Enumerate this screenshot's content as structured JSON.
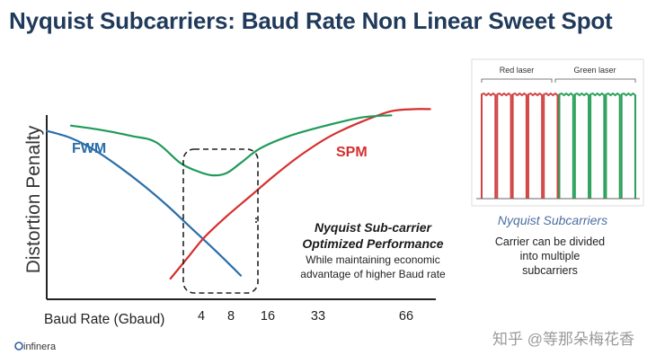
{
  "slide": {
    "title": "Nyquist Subcarriers: Baud Rate Non Linear Sweet Spot",
    "logo_text": "infinera",
    "watermark": "知乎 @等那朵梅花香"
  },
  "chart_data": [
    {
      "type": "line",
      "xlabel": "Baud Rate (Gbaud)",
      "ylabel": "Distortion Penalty",
      "x_ticks": [
        "4",
        "8",
        "16",
        "33",
        "66"
      ],
      "series": [
        {
          "name": "FWM",
          "color": "#2a6fa8",
          "points": [
            [
              0.0,
              0.815
            ],
            [
              0.1,
              0.78
            ],
            [
              0.2,
              0.72
            ],
            [
              0.3,
              0.64
            ],
            [
              0.4,
              0.55
            ],
            [
              0.5,
              0.45
            ],
            [
              0.6,
              0.34
            ],
            [
              0.7,
              0.23
            ],
            [
              0.8,
              0.115
            ]
          ]
        },
        {
          "name": "SPM",
          "color": "#d62f2f",
          "points": [
            [
              0.51,
              0.1
            ],
            [
              0.58,
              0.2
            ],
            [
              0.65,
              0.3
            ],
            [
              0.74,
              0.4
            ],
            [
              0.84,
              0.5
            ],
            [
              0.94,
              0.6
            ],
            [
              1.05,
              0.7
            ],
            [
              1.17,
              0.79
            ],
            [
              1.3,
              0.86
            ],
            [
              1.42,
              0.91
            ],
            [
              1.52,
              0.92
            ],
            [
              1.58,
              0.92
            ]
          ]
        },
        {
          "name": "",
          "color": "#1f9a5a",
          "points": [
            [
              0.1,
              0.84
            ],
            [
              0.22,
              0.82
            ],
            [
              0.35,
              0.79
            ],
            [
              0.45,
              0.76
            ],
            [
              0.55,
              0.66
            ],
            [
              0.62,
              0.62
            ],
            [
              0.68,
              0.6
            ],
            [
              0.74,
              0.61
            ],
            [
              0.8,
              0.66
            ],
            [
              0.88,
              0.73
            ],
            [
              1.0,
              0.79
            ],
            [
              1.15,
              0.84
            ],
            [
              1.3,
              0.88
            ],
            [
              1.42,
              0.89
            ]
          ]
        }
      ],
      "annotation": {
        "heading": "Nyquist Sub-carrier",
        "subheading": "Optimized Performance",
        "line1": "While maintaining economic",
        "line2": "advantage of higher Baud rate"
      }
    },
    {
      "type": "bar",
      "groups": [
        {
          "name": "Red laser",
          "color": "#d14242",
          "count": 5
        },
        {
          "name": "Green laser",
          "color": "#2aa05a",
          "count": 5
        }
      ],
      "caption": "Nyquist Subcarriers",
      "text_line1": "Carrier can be divided",
      "text_line2": "into multiple",
      "text_line3": "subcarriers"
    }
  ]
}
